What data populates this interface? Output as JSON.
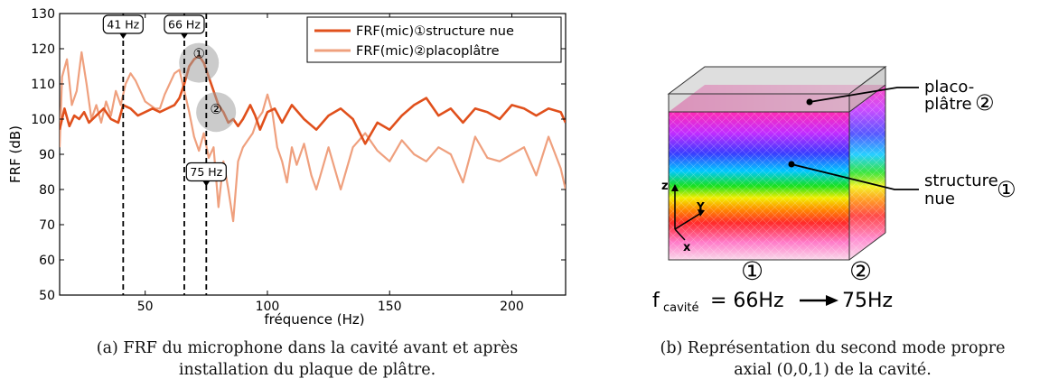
{
  "chart_data": {
    "type": "line",
    "xlabel": "fréquence (Hz)",
    "ylabel": "FRF (dB)",
    "xlim": [
      15,
      222
    ],
    "ylim": [
      50,
      130
    ],
    "xticks": [
      50,
      100,
      150,
      200
    ],
    "yticks": [
      50,
      60,
      70,
      80,
      90,
      100,
      110,
      120,
      130
    ],
    "grid": false,
    "legend_position": "top-right",
    "series": [
      {
        "name": "FRF(mic)①structure nue",
        "color": "#e0501c",
        "x": [
          15,
          17,
          19,
          21,
          23,
          25,
          27,
          30,
          33,
          36,
          39,
          41,
          44,
          47,
          50,
          53,
          56,
          59,
          62,
          64,
          66,
          68,
          70,
          72,
          74,
          76,
          78,
          80,
          82,
          84,
          86,
          88,
          90,
          93,
          95,
          97,
          100,
          103,
          106,
          110,
          115,
          120,
          125,
          130,
          135,
          140,
          145,
          150,
          155,
          160,
          165,
          170,
          175,
          180,
          185,
          190,
          195,
          200,
          205,
          210,
          215,
          220,
          222
        ],
        "y": [
          97,
          103,
          98,
          101,
          100,
          102,
          99,
          101,
          103,
          100,
          99,
          104,
          103,
          101,
          102,
          103,
          102,
          103,
          104,
          106,
          110,
          115,
          117,
          118,
          116,
          112,
          108,
          104,
          102,
          99,
          100,
          98,
          100,
          104,
          101,
          97,
          102,
          103,
          99,
          104,
          100,
          97,
          101,
          103,
          100,
          93,
          99,
          97,
          101,
          104,
          106,
          101,
          103,
          99,
          103,
          102,
          100,
          104,
          103,
          101,
          103,
          102,
          99
        ]
      },
      {
        "name": "FRF(mic)②placoplâtre",
        "color": "#efa07e",
        "x": [
          15,
          16,
          18,
          20,
          22,
          24,
          26,
          28,
          30,
          32,
          34,
          36,
          38,
          40,
          42,
          44,
          46,
          48,
          50,
          52,
          54,
          56,
          58,
          60,
          62,
          64,
          66,
          68,
          70,
          72,
          74,
          76,
          78,
          80,
          82,
          84,
          86,
          88,
          90,
          92,
          94,
          96,
          98,
          100,
          102,
          104,
          106,
          108,
          110,
          112,
          115,
          118,
          120,
          125,
          130,
          135,
          140,
          145,
          150,
          155,
          160,
          165,
          170,
          175,
          180,
          185,
          190,
          195,
          200,
          205,
          210,
          215,
          220,
          222
        ],
        "y": [
          92,
          112,
          117,
          104,
          108,
          119,
          110,
          100,
          104,
          99,
          105,
          101,
          108,
          104,
          110,
          113,
          111,
          108,
          105,
          104,
          103,
          103,
          107,
          110,
          113,
          114,
          108,
          102,
          95,
          91,
          96,
          89,
          92,
          75,
          88,
          80,
          71,
          88,
          92,
          94,
          96,
          100,
          102,
          107,
          102,
          92,
          88,
          82,
          92,
          87,
          93,
          84,
          80,
          92,
          80,
          92,
          96,
          91,
          88,
          94,
          90,
          88,
          92,
          90,
          82,
          95,
          89,
          88,
          90,
          92,
          84,
          95,
          86,
          80
        ]
      }
    ],
    "vlines": [
      {
        "x": 41,
        "label": "41 Hz"
      },
      {
        "x": 66,
        "label": "66 Hz"
      },
      {
        "x": 75,
        "label": "75 Hz"
      }
    ],
    "markers": [
      {
        "x": 72,
        "y": 116,
        "label": "①"
      },
      {
        "x": 79,
        "y": 102,
        "label": "②"
      }
    ]
  },
  "captions": {
    "a_line1": "(a) FRF du microphone dans la cavité avant et après",
    "a_line2": "installation du plaque de plâtre.",
    "b_line1": "(b) Représentation du second mode propre",
    "b_line2": "axial (0,0,1) de la cavité."
  },
  "diagram": {
    "label_placo_1": "placo-",
    "label_placo_2": "plâtre",
    "label_placo_num": "②",
    "label_struct_1": "structure",
    "label_struct_2": "nue",
    "label_struct_num": "①",
    "axis_z": "z",
    "axis_y": "Y",
    "axis_x": "x",
    "num1": "①",
    "num2": "②",
    "f_symbol": "f",
    "f_sub": "cavité",
    "f_eq": "= 66Hz",
    "f_to": "75Hz"
  }
}
